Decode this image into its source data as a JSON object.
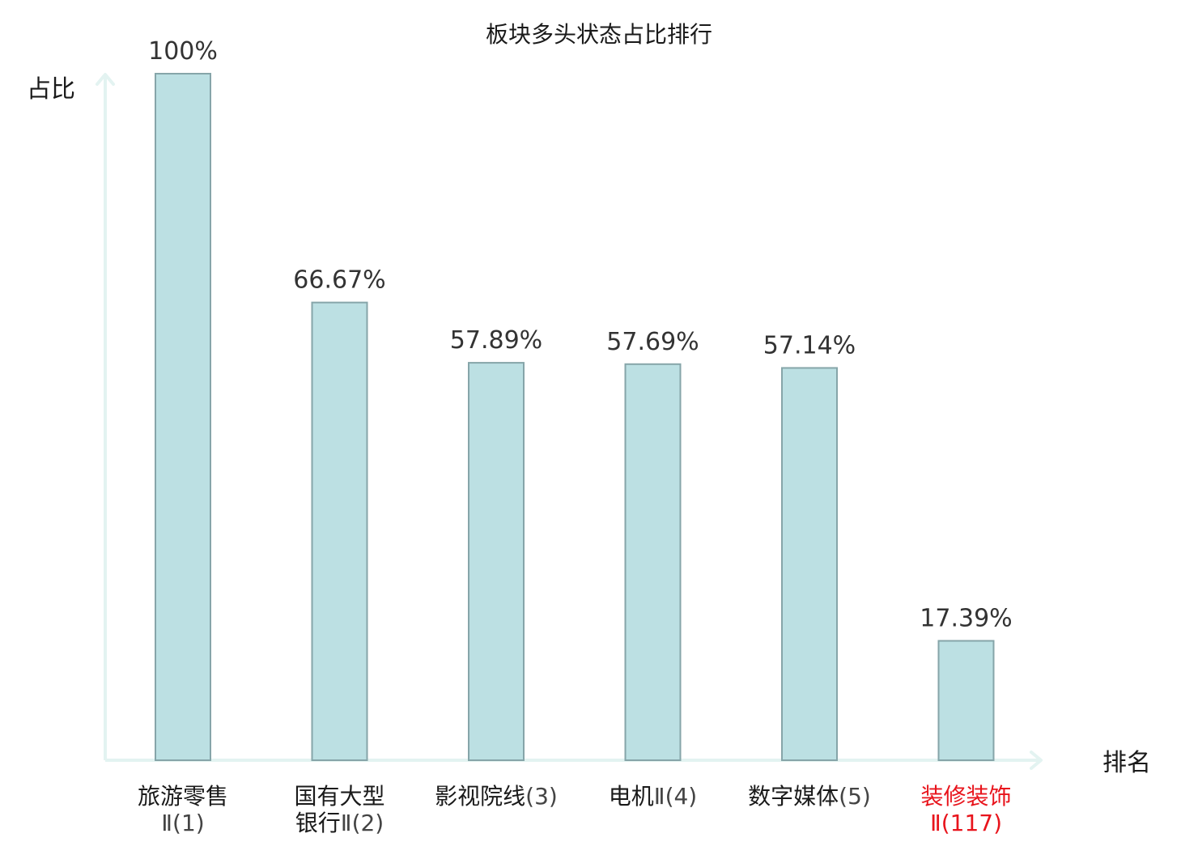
{
  "chart_data": {
    "type": "bar",
    "title": "板块多头状态占比排行",
    "ylabel": "占比",
    "xlabel": "排名",
    "ylim": [
      0,
      100
    ],
    "grid": false,
    "categories": [
      {
        "name_lines": [
          "旅游零售",
          ""
        ],
        "rank_text": "Ⅱ(1)",
        "highlight": false
      },
      {
        "name_lines": [
          "国有大型",
          "银行"
        ],
        "rank_text": "Ⅱ(2)",
        "highlight": false
      },
      {
        "name_lines": [
          "影视院线"
        ],
        "rank_text": "(3)",
        "highlight": false
      },
      {
        "name_lines": [
          "电机"
        ],
        "rank_text": "Ⅱ(4)",
        "highlight": false
      },
      {
        "name_lines": [
          "数字媒体"
        ],
        "rank_text": "(5)",
        "highlight": false
      },
      {
        "name_lines": [
          "装修装饰",
          ""
        ],
        "rank_text": "Ⅱ(117)",
        "highlight": true
      }
    ],
    "values": [
      100,
      66.67,
      57.89,
      57.69,
      57.14,
      17.39
    ],
    "value_labels": [
      "100%",
      "66.67%",
      "57.89%",
      "57.69%",
      "57.14%",
      "17.39%"
    ],
    "colors": {
      "bar_fill": "#bce0e3",
      "bar_stroke": "#86a5a9",
      "axis": "#e3f3f1",
      "label_text": "#1a1a1a",
      "value_text": "#333333",
      "rank_text": "#444444",
      "highlight": "#e8141c"
    }
  }
}
